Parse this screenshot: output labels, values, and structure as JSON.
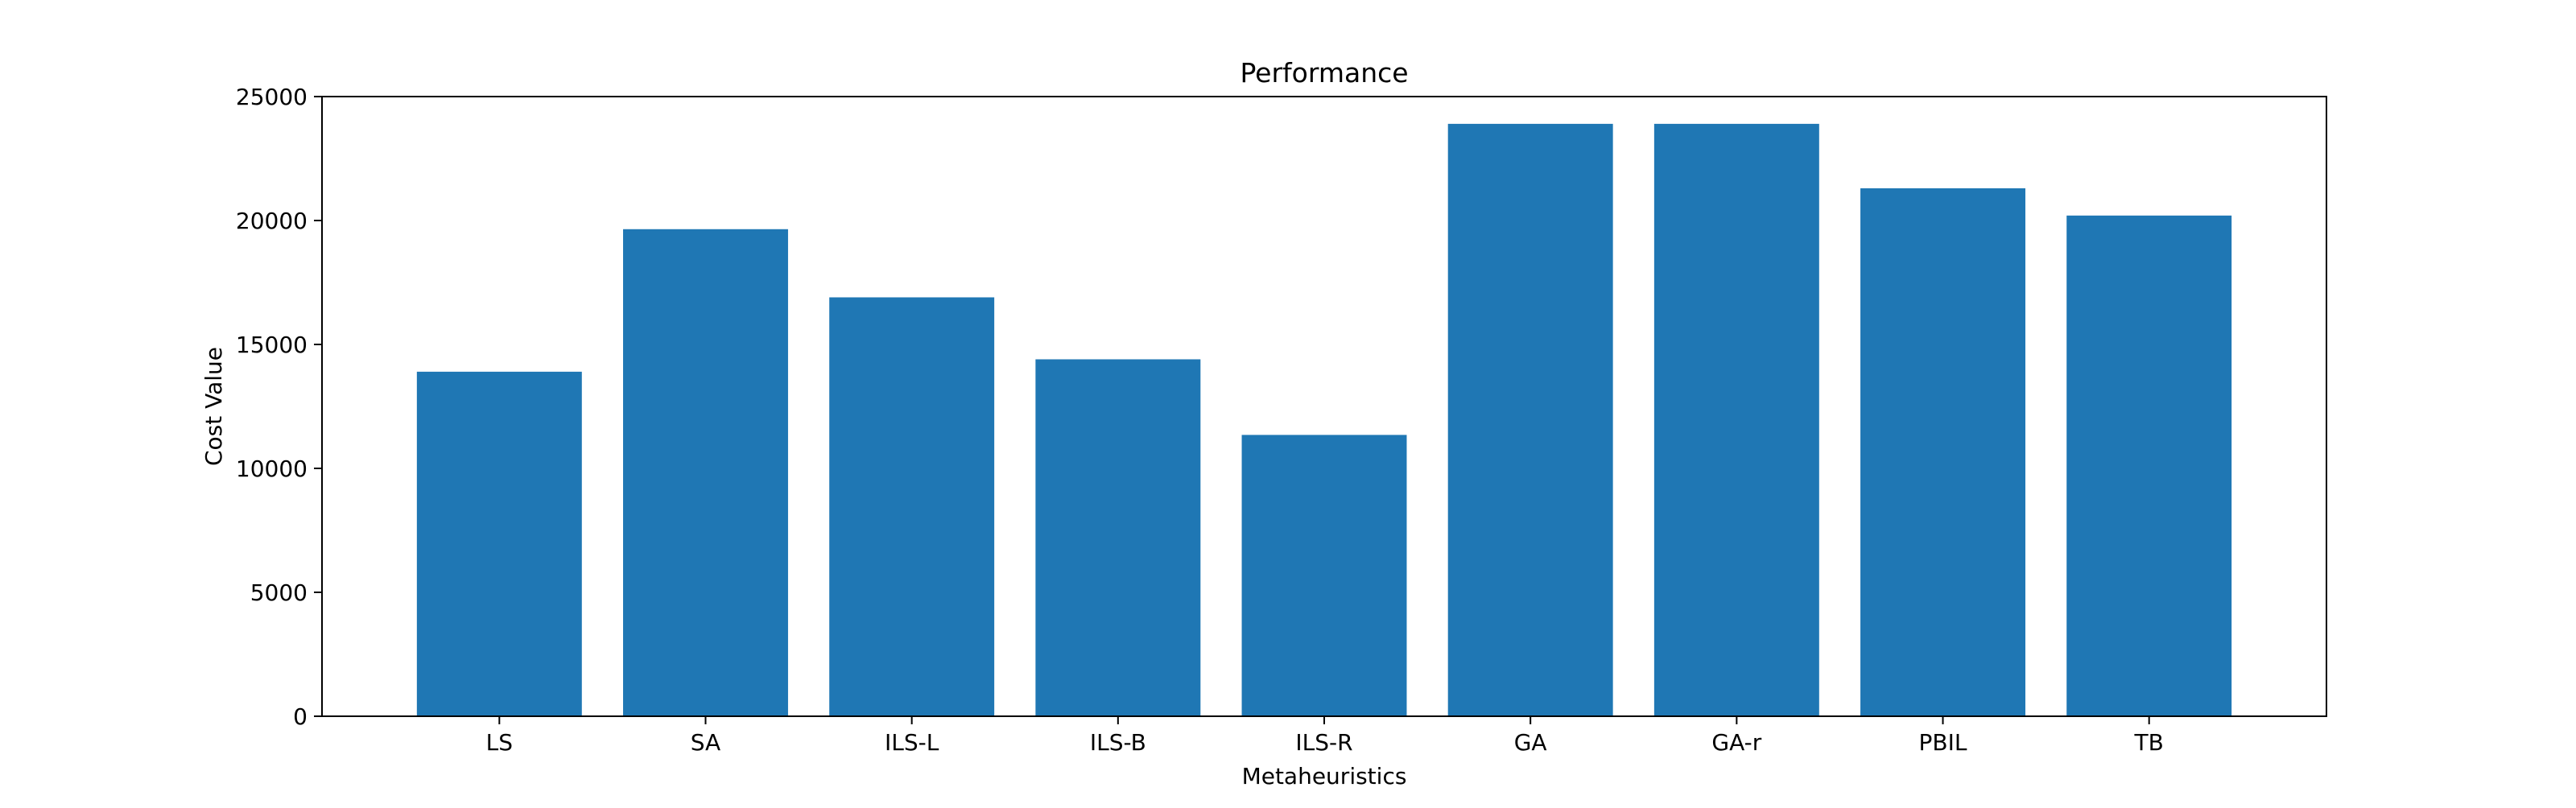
{
  "chart_data": {
    "type": "bar",
    "title": "Performance",
    "xlabel": "Metaheuristics",
    "ylabel": "Cost Value",
    "categories": [
      "LS",
      "SA",
      "ILS-L",
      "ILS-B",
      "ILS-R",
      "GA",
      "GA-r",
      "PBIL",
      "TB"
    ],
    "values": [
      13900,
      19650,
      16900,
      14400,
      11350,
      23900,
      23900,
      21300,
      20200
    ],
    "ylim": [
      0,
      25000
    ],
    "yticks": [
      0,
      5000,
      10000,
      15000,
      20000,
      25000
    ],
    "ytick_labels": [
      "0",
      "5000",
      "10000",
      "15000",
      "20000",
      "25000"
    ],
    "grid": false,
    "bar_color": "#1f77b4"
  }
}
